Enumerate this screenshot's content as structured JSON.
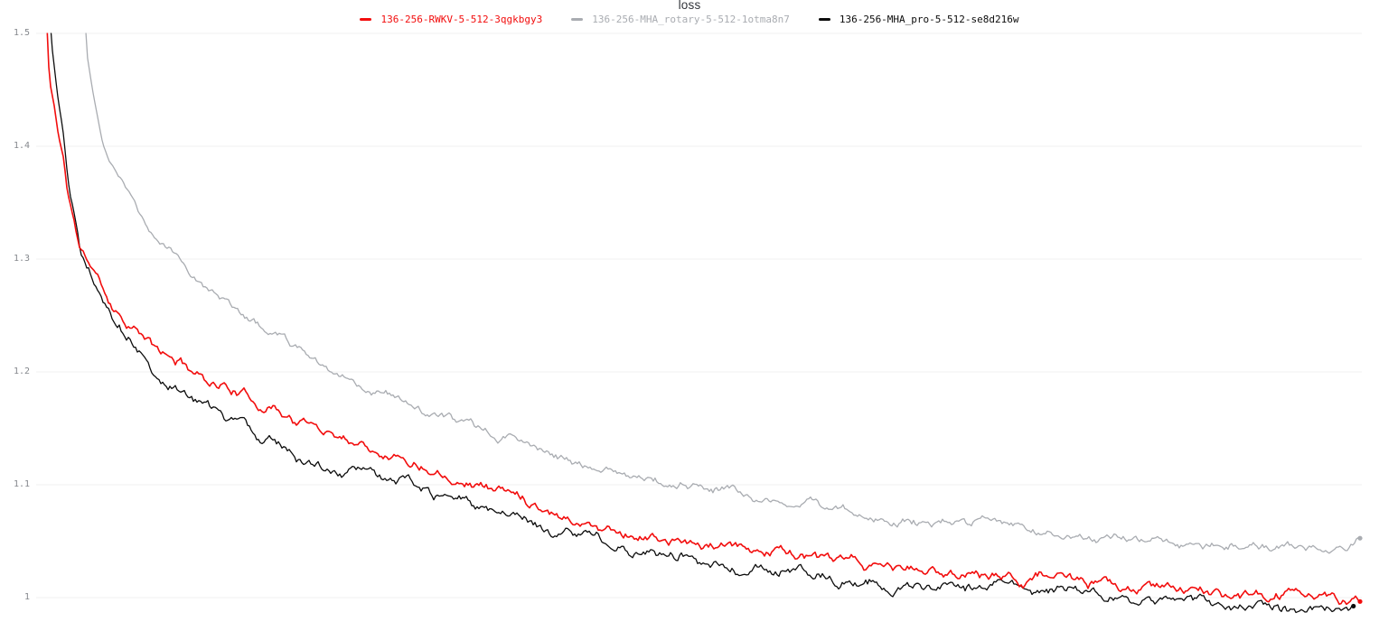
{
  "chart_data": {
    "type": "line",
    "title": "loss",
    "xlabel": "",
    "ylabel": "",
    "x_ticks_visible": false,
    "ylim_visible": [
      0.97,
      1.5
    ],
    "yticks": [
      1.0,
      1.1,
      1.2,
      1.3,
      1.4,
      1.5
    ],
    "grid": "horizontal",
    "legend_position": "top-center",
    "series": [
      {
        "name": "136-256-RWKV-5-512-3qgkbgy3",
        "color": "#f20d0d",
        "end_dot": true,
        "points": [
          [
            0.0,
            1.52
          ],
          [
            0.002,
            1.5
          ],
          [
            0.003,
            1.46
          ],
          [
            0.007,
            1.435
          ],
          [
            0.01,
            1.41
          ],
          [
            0.014,
            1.39
          ],
          [
            0.017,
            1.358
          ],
          [
            0.021,
            1.34
          ],
          [
            0.026,
            1.31
          ],
          [
            0.031,
            1.3
          ],
          [
            0.038,
            1.288
          ],
          [
            0.045,
            1.272
          ],
          [
            0.052,
            1.258
          ],
          [
            0.062,
            1.246
          ],
          [
            0.072,
            1.235
          ],
          [
            0.082,
            1.222
          ],
          [
            0.093,
            1.212
          ],
          [
            0.107,
            1.206
          ],
          [
            0.12,
            1.195
          ],
          [
            0.134,
            1.19
          ],
          [
            0.148,
            1.182
          ],
          [
            0.162,
            1.172
          ],
          [
            0.175,
            1.17
          ],
          [
            0.189,
            1.158
          ],
          [
            0.203,
            1.152
          ],
          [
            0.216,
            1.148
          ],
          [
            0.23,
            1.142
          ],
          [
            0.244,
            1.137
          ],
          [
            0.258,
            1.131
          ],
          [
            0.272,
            1.125
          ],
          [
            0.285,
            1.119
          ],
          [
            0.299,
            1.115
          ],
          [
            0.313,
            1.108
          ],
          [
            0.326,
            1.103
          ],
          [
            0.34,
            1.099
          ],
          [
            0.354,
            1.093
          ],
          [
            0.368,
            1.087
          ],
          [
            0.381,
            1.081
          ],
          [
            0.395,
            1.073
          ],
          [
            0.409,
            1.067
          ],
          [
            0.423,
            1.063
          ],
          [
            0.436,
            1.06
          ],
          [
            0.45,
            1.056
          ],
          [
            0.464,
            1.053
          ],
          [
            0.478,
            1.049
          ],
          [
            0.491,
            1.047
          ],
          [
            0.505,
            1.045
          ],
          [
            0.519,
            1.044
          ],
          [
            0.533,
            1.041
          ],
          [
            0.546,
            1.042
          ],
          [
            0.56,
            1.043
          ],
          [
            0.574,
            1.038
          ],
          [
            0.588,
            1.033
          ],
          [
            0.601,
            1.031
          ],
          [
            0.615,
            1.029
          ],
          [
            0.629,
            1.027
          ],
          [
            0.643,
            1.026
          ],
          [
            0.656,
            1.025
          ],
          [
            0.67,
            1.023
          ],
          [
            0.684,
            1.021
          ],
          [
            0.698,
            1.022
          ],
          [
            0.711,
            1.023
          ],
          [
            0.725,
            1.019
          ],
          [
            0.739,
            1.017
          ],
          [
            0.753,
            1.019
          ],
          [
            0.766,
            1.021
          ],
          [
            0.78,
            1.015
          ],
          [
            0.794,
            1.011
          ],
          [
            0.808,
            1.009
          ],
          [
            0.821,
            1.007
          ],
          [
            0.835,
            1.006
          ],
          [
            0.849,
            1.008
          ],
          [
            0.863,
            1.011
          ],
          [
            0.876,
            1.005
          ],
          [
            0.89,
            1.003
          ],
          [
            0.904,
            1.001
          ],
          [
            0.918,
            1.0
          ],
          [
            0.931,
            0.999
          ],
          [
            0.945,
            1.002
          ],
          [
            0.959,
            1.007
          ],
          [
            0.973,
            1.0
          ],
          [
            0.986,
            0.997
          ],
          [
            1.0,
            0.995
          ]
        ]
      },
      {
        "name": "136-256-MHA_rotary-5-512-1otma8n7",
        "color": "#a9acb1",
        "end_dot": true,
        "points": [
          [
            0.0295,
            1.53
          ],
          [
            0.032,
            1.48
          ],
          [
            0.036,
            1.45
          ],
          [
            0.04,
            1.425
          ],
          [
            0.044,
            1.4
          ],
          [
            0.049,
            1.386
          ],
          [
            0.055,
            1.373
          ],
          [
            0.062,
            1.361
          ],
          [
            0.069,
            1.346
          ],
          [
            0.076,
            1.331
          ],
          [
            0.082,
            1.321
          ],
          [
            0.089,
            1.313
          ],
          [
            0.096,
            1.306
          ],
          [
            0.103,
            1.299
          ],
          [
            0.11,
            1.291
          ],
          [
            0.117,
            1.284
          ],
          [
            0.127,
            1.273
          ],
          [
            0.137,
            1.263
          ],
          [
            0.148,
            1.253
          ],
          [
            0.158,
            1.245
          ],
          [
            0.168,
            1.236
          ],
          [
            0.179,
            1.229
          ],
          [
            0.192,
            1.219
          ],
          [
            0.206,
            1.211
          ],
          [
            0.22,
            1.201
          ],
          [
            0.234,
            1.194
          ],
          [
            0.247,
            1.186
          ],
          [
            0.261,
            1.181
          ],
          [
            0.275,
            1.173
          ],
          [
            0.289,
            1.165
          ],
          [
            0.302,
            1.159
          ],
          [
            0.316,
            1.153
          ],
          [
            0.33,
            1.149
          ],
          [
            0.344,
            1.144
          ],
          [
            0.357,
            1.139
          ],
          [
            0.371,
            1.134
          ],
          [
            0.385,
            1.129
          ],
          [
            0.399,
            1.123
          ],
          [
            0.412,
            1.117
          ],
          [
            0.426,
            1.113
          ],
          [
            0.44,
            1.111
          ],
          [
            0.454,
            1.107
          ],
          [
            0.467,
            1.104
          ],
          [
            0.481,
            1.101
          ],
          [
            0.495,
            1.099
          ],
          [
            0.509,
            1.096
          ],
          [
            0.522,
            1.093
          ],
          [
            0.536,
            1.089
          ],
          [
            0.55,
            1.087
          ],
          [
            0.564,
            1.085
          ],
          [
            0.577,
            1.083
          ],
          [
            0.591,
            1.079
          ],
          [
            0.605,
            1.076
          ],
          [
            0.619,
            1.073
          ],
          [
            0.632,
            1.071
          ],
          [
            0.646,
            1.069
          ],
          [
            0.66,
            1.068
          ],
          [
            0.674,
            1.067
          ],
          [
            0.687,
            1.069
          ],
          [
            0.701,
            1.065
          ],
          [
            0.715,
            1.067
          ],
          [
            0.729,
            1.063
          ],
          [
            0.742,
            1.061
          ],
          [
            0.756,
            1.059
          ],
          [
            0.77,
            1.058
          ],
          [
            0.784,
            1.055
          ],
          [
            0.797,
            1.053
          ],
          [
            0.811,
            1.052
          ],
          [
            0.825,
            1.051
          ],
          [
            0.839,
            1.05
          ],
          [
            0.852,
            1.051
          ],
          [
            0.866,
            1.049
          ],
          [
            0.88,
            1.047
          ],
          [
            0.894,
            1.049
          ],
          [
            0.907,
            1.048
          ],
          [
            0.921,
            1.047
          ],
          [
            0.935,
            1.045
          ],
          [
            0.949,
            1.045
          ],
          [
            0.962,
            1.047
          ],
          [
            0.976,
            1.045
          ],
          [
            0.99,
            1.049
          ],
          [
            1.0,
            1.056
          ]
        ]
      },
      {
        "name": "136-256-MHA_pro-5-512-se8d216w",
        "color": "#0c0c0c",
        "end_dot": true,
        "points": [
          [
            0.0,
            1.58
          ],
          [
            0.005,
            1.49
          ],
          [
            0.01,
            1.44
          ],
          [
            0.014,
            1.41
          ],
          [
            0.017,
            1.375
          ],
          [
            0.019,
            1.358
          ],
          [
            0.024,
            1.33
          ],
          [
            0.027,
            1.305
          ],
          [
            0.031,
            1.295
          ],
          [
            0.034,
            1.29
          ],
          [
            0.038,
            1.277
          ],
          [
            0.045,
            1.262
          ],
          [
            0.052,
            1.247
          ],
          [
            0.062,
            1.235
          ],
          [
            0.072,
            1.222
          ],
          [
            0.082,
            1.206
          ],
          [
            0.089,
            1.198
          ],
          [
            0.096,
            1.193
          ],
          [
            0.103,
            1.184
          ],
          [
            0.113,
            1.176
          ],
          [
            0.124,
            1.168
          ],
          [
            0.137,
            1.159
          ],
          [
            0.151,
            1.15
          ],
          [
            0.165,
            1.142
          ],
          [
            0.172,
            1.144
          ],
          [
            0.186,
            1.13
          ],
          [
            0.199,
            1.121
          ],
          [
            0.21,
            1.118
          ],
          [
            0.22,
            1.112
          ],
          [
            0.23,
            1.11
          ],
          [
            0.241,
            1.107
          ],
          [
            0.254,
            1.103
          ],
          [
            0.268,
            1.1
          ],
          [
            0.275,
            1.102
          ],
          [
            0.285,
            1.094
          ],
          [
            0.296,
            1.09
          ],
          [
            0.309,
            1.086
          ],
          [
            0.323,
            1.081
          ],
          [
            0.337,
            1.078
          ],
          [
            0.351,
            1.072
          ],
          [
            0.364,
            1.067
          ],
          [
            0.378,
            1.062
          ],
          [
            0.392,
            1.058
          ],
          [
            0.406,
            1.056
          ],
          [
            0.419,
            1.053
          ],
          [
            0.433,
            1.048
          ],
          [
            0.447,
            1.044
          ],
          [
            0.46,
            1.04
          ],
          [
            0.474,
            1.036
          ],
          [
            0.488,
            1.037
          ],
          [
            0.502,
            1.033
          ],
          [
            0.515,
            1.03
          ],
          [
            0.529,
            1.027
          ],
          [
            0.543,
            1.025
          ],
          [
            0.557,
            1.022
          ],
          [
            0.57,
            1.026
          ],
          [
            0.584,
            1.02
          ],
          [
            0.598,
            1.016
          ],
          [
            0.612,
            1.012
          ],
          [
            0.625,
            1.014
          ],
          [
            0.639,
            1.012
          ],
          [
            0.653,
            1.01
          ],
          [
            0.667,
            1.008
          ],
          [
            0.68,
            1.011
          ],
          [
            0.694,
            1.009
          ],
          [
            0.708,
            1.007
          ],
          [
            0.722,
            1.012
          ],
          [
            0.735,
            1.009
          ],
          [
            0.749,
            1.007
          ],
          [
            0.763,
            1.005
          ],
          [
            0.777,
            1.004
          ],
          [
            0.79,
            1.003
          ],
          [
            0.804,
            1.0
          ],
          [
            0.818,
            1.002
          ],
          [
            0.832,
            0.999
          ],
          [
            0.845,
            0.997
          ],
          [
            0.859,
            1.0
          ],
          [
            0.873,
            0.998
          ],
          [
            0.887,
            0.995
          ],
          [
            0.9,
            0.993
          ],
          [
            0.914,
            0.997
          ],
          [
            0.928,
            0.993
          ],
          [
            0.942,
            0.99
          ],
          [
            0.955,
            0.988
          ],
          [
            0.969,
            0.992
          ],
          [
            0.983,
            0.99
          ],
          [
            0.995,
            0.99
          ]
        ]
      }
    ]
  },
  "axes": {
    "y_ticks": [
      {
        "label": "1.5",
        "value": 1.5
      },
      {
        "label": "1.4",
        "value": 1.4
      },
      {
        "label": "1.3",
        "value": 1.3
      },
      {
        "label": "1.2",
        "value": 1.2
      },
      {
        "label": "1.1",
        "value": 1.1
      },
      {
        "label": "1",
        "value": 1.0
      }
    ]
  },
  "colors": {
    "background": "#ffffff",
    "gridline": "#f0f0f2",
    "tick_label": "#85888d",
    "title": "#32353b"
  }
}
